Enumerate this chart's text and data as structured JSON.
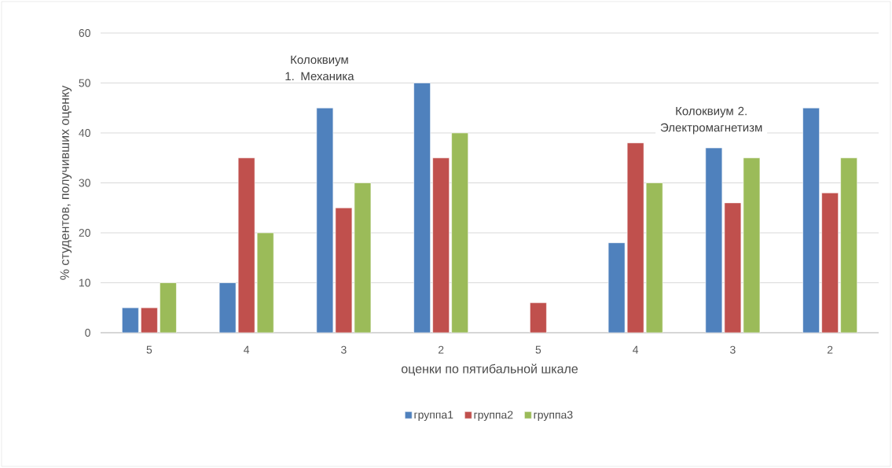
{
  "chart_data": {
    "type": "bar",
    "categories": [
      "5",
      "4",
      "3",
      "2",
      "5",
      "4",
      "3",
      "2"
    ],
    "xlabel": "оценки по пятибальной шкале",
    "ylabel": "% студентов, получивших оценку",
    "annotations": [
      "Колоквиум 1. Механика",
      "Колоквиум 2. Электромагнетизм"
    ],
    "series": [
      {
        "name": "группа1",
        "color": "#4f81bd",
        "values": [
          5,
          10,
          45,
          50,
          null,
          18,
          37,
          45
        ]
      },
      {
        "name": "группа2",
        "color": "#c0504d",
        "values": [
          5,
          35,
          25,
          35,
          6,
          38,
          26,
          28
        ]
      },
      {
        "name": "группа3",
        "color": "#9bbb59",
        "values": [
          10,
          20,
          30,
          40,
          null,
          30,
          35,
          35
        ]
      }
    ],
    "ylim": [
      0,
      60
    ],
    "yticks": [
      0,
      10,
      20,
      30,
      40,
      50,
      60
    ],
    "grid": "y",
    "legend": "bottom"
  }
}
